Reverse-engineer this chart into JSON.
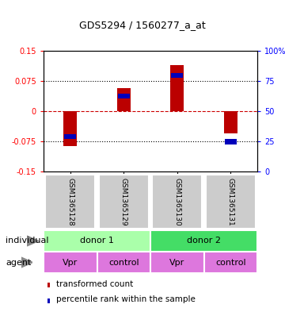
{
  "title": "GDS5294 / 1560277_a_at",
  "samples": [
    "GSM1365128",
    "GSM1365129",
    "GSM1365130",
    "GSM1365131"
  ],
  "bar_values": [
    -0.086,
    0.058,
    0.115,
    -0.055
  ],
  "blue_values": [
    -0.063,
    0.038,
    0.088,
    -0.076
  ],
  "ylim": [
    -0.15,
    0.15
  ],
  "yticks_left": [
    -0.15,
    -0.075,
    0,
    0.075,
    0.15
  ],
  "yticks_right": [
    0,
    25,
    50,
    75,
    100
  ],
  "ytick_labels_left": [
    "-0.15",
    "-0.075",
    "0",
    "0.075",
    "0.15"
  ],
  "ytick_labels_right": [
    "0",
    "25",
    "50",
    "75",
    "100%"
  ],
  "bar_color": "#bb0000",
  "blue_color": "#0000bb",
  "zero_line_color": "#cc0000",
  "bar_width": 0.25,
  "donor1_color": "#aaffaa",
  "donor2_color": "#44dd66",
  "agent_color": "#dd77dd",
  "gsm_bg": "#cccccc",
  "individual_labels": [
    "donor 1",
    "donor 2"
  ],
  "agent_labels": [
    "Vpr",
    "control",
    "Vpr",
    "control"
  ],
  "legend_red": "transformed count",
  "legend_blue": "percentile rank within the sample"
}
